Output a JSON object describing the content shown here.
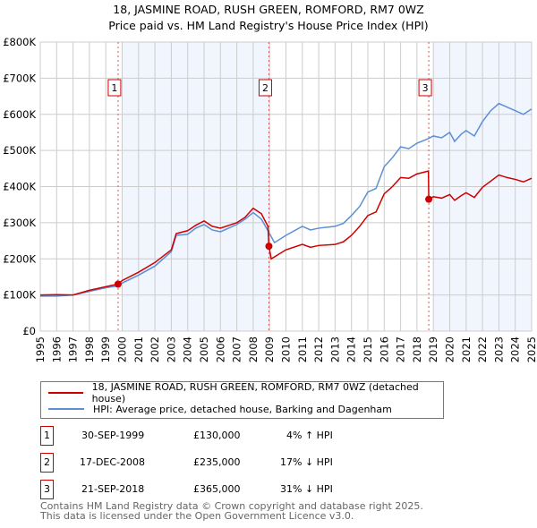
{
  "title": "18, JASMINE ROAD, RUSH GREEN, ROMFORD, RM7 0WZ",
  "subtitle": "Price paid vs. HM Land Registry's House Price Index (HPI)",
  "chart_data": {
    "type": "line",
    "ylim": [
      0,
      800000
    ],
    "xlim": [
      1995,
      2025
    ],
    "yticks": [
      {
        "v": 0,
        "l": "£0"
      },
      {
        "v": 100000,
        "l": "£100K"
      },
      {
        "v": 200000,
        "l": "£200K"
      },
      {
        "v": 300000,
        "l": "£300K"
      },
      {
        "v": 400000,
        "l": "£400K"
      },
      {
        "v": 500000,
        "l": "£500K"
      },
      {
        "v": 600000,
        "l": "£600K"
      },
      {
        "v": 700000,
        "l": "£700K"
      },
      {
        "v": 800000,
        "l": "£800K"
      }
    ],
    "xticks": [
      "1995",
      "1996",
      "1997",
      "1998",
      "1999",
      "2000",
      "2001",
      "2002",
      "2003",
      "2004",
      "2005",
      "2006",
      "2007",
      "2008",
      "2009",
      "2010",
      "2011",
      "2012",
      "2013",
      "2014",
      "2015",
      "2016",
      "2017",
      "2018",
      "2019",
      "2020",
      "2021",
      "2022",
      "2023",
      "2024",
      "2025"
    ],
    "grid": true,
    "shaded_periods": [
      [
        2000,
        2009
      ],
      [
        2019,
        2025
      ]
    ],
    "series": [
      {
        "name": "18, JASMINE ROAD, RUSH GREEN, ROMFORD, RM7 0WZ (detached house)",
        "color": "#cc0000",
        "x": [
          1995,
          1996,
          1997,
          1998,
          1999,
          1999.75,
          2000,
          2001,
          2002,
          2003,
          2003.3,
          2004,
          2004.5,
          2005,
          2005.5,
          2006,
          2007,
          2007.5,
          2008,
          2008.5,
          2008.9,
          2008.96,
          2009.1,
          2010,
          2011,
          2011.5,
          2012,
          2013,
          2013.5,
          2014,
          2014.5,
          2015,
          2015.5,
          2016,
          2016.5,
          2017,
          2017.5,
          2018,
          2018.7,
          2018.72,
          2019,
          2019.5,
          2020,
          2020.3,
          2020.7,
          2021,
          2021.5,
          2022,
          2022.5,
          2023,
          2023.5,
          2024,
          2024.5,
          2025
        ],
        "y": [
          100,
          101,
          100,
          113,
          123,
          130,
          140,
          163,
          190,
          225,
          270,
          278,
          293,
          305,
          290,
          285,
          300,
          315,
          340,
          325,
          290,
          235,
          200,
          225,
          240,
          232,
          237,
          240,
          247,
          265,
          290,
          320,
          330,
          380,
          400,
          425,
          423,
          435,
          443,
          365,
          372,
          368,
          378,
          362,
          375,
          383,
          370,
          398,
          415,
          432,
          425,
          420,
          413,
          423
        ]
      },
      {
        "name": "HPI: Average price, detached house, Barking and Dagenham",
        "color": "#5b8fd6",
        "x": [
          1995,
          1996,
          1997,
          1998,
          1999,
          1999.75,
          2000,
          2001,
          2002,
          2003,
          2003.3,
          2004,
          2004.5,
          2005,
          2005.5,
          2006,
          2007,
          2007.5,
          2008,
          2008.5,
          2009,
          2009.3,
          2010,
          2011,
          2011.5,
          2012,
          2013,
          2013.5,
          2014,
          2014.5,
          2015,
          2015.5,
          2016,
          2016.5,
          2017,
          2017.5,
          2018,
          2018.7,
          2019,
          2019.5,
          2020,
          2020.3,
          2020.7,
          2021,
          2021.5,
          2022,
          2022.5,
          2023,
          2023.5,
          2024,
          2024.5,
          2025
        ],
        "y": [
          97,
          97,
          100,
          110,
          120,
          125,
          133,
          155,
          180,
          220,
          265,
          268,
          285,
          295,
          280,
          275,
          295,
          310,
          328,
          310,
          270,
          245,
          265,
          290,
          280,
          285,
          290,
          298,
          320,
          345,
          385,
          395,
          455,
          480,
          510,
          505,
          520,
          533,
          540,
          535,
          550,
          525,
          545,
          555,
          540,
          580,
          610,
          630,
          620,
          610,
          600,
          615
        ]
      }
    ],
    "sales": [
      {
        "label": "1",
        "x": 1999.75,
        "y": 130
      },
      {
        "label": "2",
        "x": 2008.96,
        "y": 235
      },
      {
        "label": "3",
        "x": 2018.72,
        "y": 365
      }
    ]
  },
  "legend": {
    "property": "18, JASMINE ROAD, RUSH GREEN, ROMFORD, RM7 0WZ (detached house)",
    "hpi": "HPI: Average price, detached house, Barking and Dagenham"
  },
  "transactions": [
    {
      "num": "1",
      "date": "30-SEP-1999",
      "price": "£130,000",
      "hpi": "4% ↑ HPI"
    },
    {
      "num": "2",
      "date": "17-DEC-2008",
      "price": "£235,000",
      "hpi": "17% ↓ HPI"
    },
    {
      "num": "3",
      "date": "21-SEP-2018",
      "price": "£365,000",
      "hpi": "31% ↓ HPI"
    }
  ],
  "footer": {
    "line1": "Contains HM Land Registry data © Crown copyright and database right 2025.",
    "line2": "This data is licensed under the Open Government Licence v3.0."
  }
}
